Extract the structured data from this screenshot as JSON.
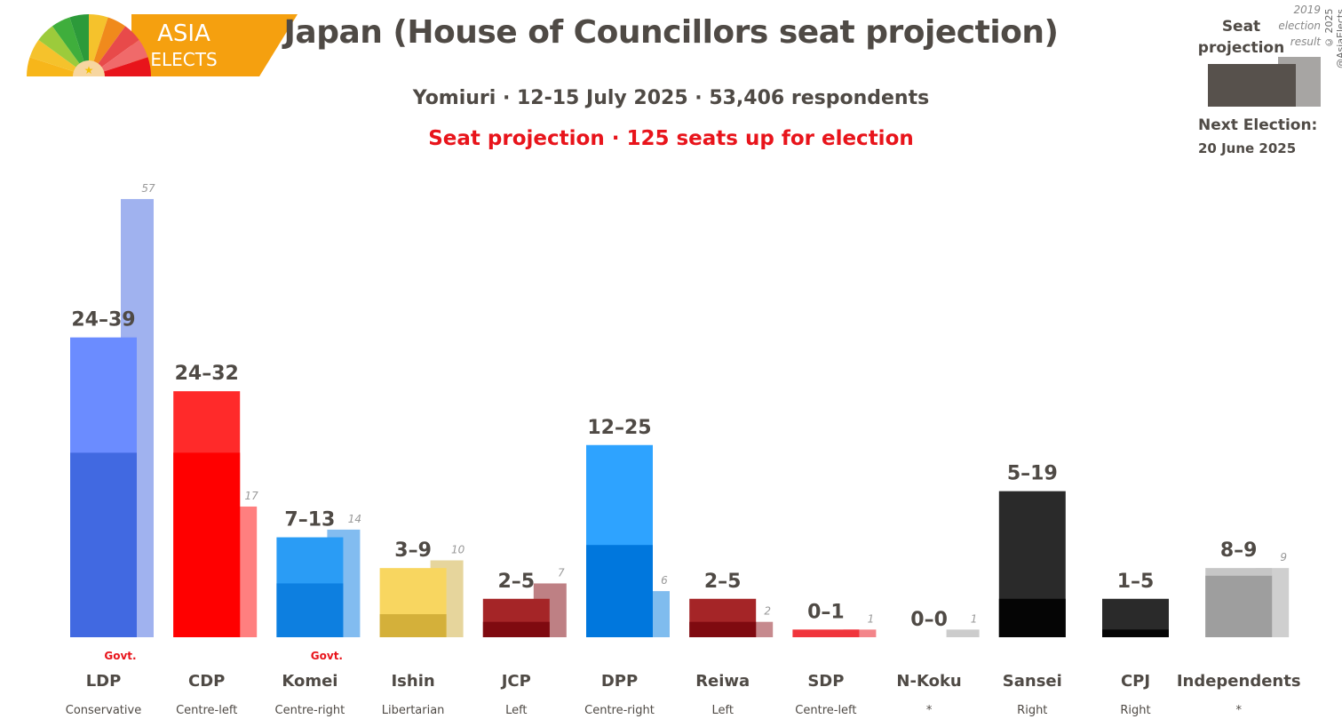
{
  "logo": {
    "line1": "ASIA",
    "line2": "ELECTS"
  },
  "header": {
    "title": "Japan (House of Councillors seat projection)",
    "subtitle": "Yomiuri · 12-15 July 2025 · 53,406 respondents",
    "projection_line": "Seat projection · 125 seats up for election"
  },
  "legend": {
    "projection_label_1": "Seat",
    "projection_label_2": "projection",
    "previous_label_1": "2019",
    "previous_label_2": "election",
    "previous_label_3": "result",
    "next_election_label": "Next Election:",
    "next_election_date": "20 June 2025",
    "copyright": "© 2025 @AsiaElects"
  },
  "colors": {
    "accent_red": "#e8141b",
    "text": "#4f4a45",
    "logo_orange": "#f5a00f"
  },
  "chart_data": {
    "type": "bar",
    "title": "Japan (House of Councillors seat projection)",
    "ylim": [
      0,
      60
    ],
    "grid": false,
    "legend_position": "top-right",
    "series": [
      {
        "name": "Seat projection (low)",
        "values": [
          24,
          24,
          7,
          3,
          2,
          12,
          2,
          0,
          0,
          5,
          1,
          8
        ]
      },
      {
        "name": "Seat projection (high)",
        "values": [
          39,
          32,
          13,
          9,
          5,
          25,
          5,
          1,
          0,
          19,
          5,
          9
        ]
      },
      {
        "name": "2019 election result",
        "values": [
          57,
          17,
          14,
          10,
          7,
          6,
          2,
          1,
          1,
          null,
          null,
          9
        ]
      }
    ],
    "parties": [
      {
        "name": "LDP",
        "ideology": "Conservative",
        "range_label": "24–39",
        "low": 24,
        "high": 39,
        "prev": 57,
        "prev_label": "57",
        "govt": "Govt.",
        "dark": "#4169e1",
        "light": "#6b8cff",
        "prev_color": "#a0b2ef"
      },
      {
        "name": "CDP",
        "ideology": "Centre-left",
        "range_label": "24–32",
        "low": 24,
        "high": 32,
        "prev": 17,
        "prev_label": "17",
        "govt": "",
        "dark": "#ff0000",
        "light": "#ff2a2a",
        "prev_color": "#ff7f7f"
      },
      {
        "name": "Komei",
        "ideology": "Centre-right",
        "range_label": "7–13",
        "low": 7,
        "high": 13,
        "prev": 14,
        "prev_label": "14",
        "govt": "Govt.",
        "dark": "#0d7fe0",
        "light": "#2a9cf5",
        "prev_color": "#82bcf0"
      },
      {
        "name": "Ishin",
        "ideology": "Libertarian",
        "range_label": "3–9",
        "low": 3,
        "high": 9,
        "prev": 10,
        "prev_label": "10",
        "govt": "",
        "dark": "#d4b03a",
        "light": "#f8d660",
        "prev_color": "#e6d59c"
      },
      {
        "name": "JCP",
        "ideology": "Left",
        "range_label": "2–5",
        "low": 2,
        "high": 5,
        "prev": 7,
        "prev_label": "7",
        "govt": "",
        "dark": "#7f0a10",
        "light": "#a52527",
        "prev_color": "#be8084"
      },
      {
        "name": "DPP",
        "ideology": "Centre-right",
        "range_label": "12–25",
        "low": 12,
        "high": 25,
        "prev": 6,
        "prev_label": "6",
        "govt": "",
        "dark": "#0077dd",
        "light": "#2ea3ff",
        "prev_color": "#7fbcee"
      },
      {
        "name": "Reiwa",
        "ideology": "Left",
        "range_label": "2–5",
        "low": 2,
        "high": 5,
        "prev": 2,
        "prev_label": "2",
        "govt": "",
        "dark": "#7f0a10",
        "light": "#a52527",
        "prev_color": "#c68a8e"
      },
      {
        "name": "SDP",
        "ideology": "Centre-left",
        "range_label": "0–1",
        "low": 0,
        "high": 1,
        "prev": 1,
        "prev_label": "1",
        "govt": "",
        "dark": "#e11b22",
        "light": "#f0353c",
        "prev_color": "#f3858a"
      },
      {
        "name": "N-Koku",
        "ideology": "*",
        "range_label": "0–0",
        "low": 0,
        "high": 0,
        "prev": 1,
        "prev_label": "1",
        "govt": "",
        "dark": "#cccccc",
        "light": "#cccccc",
        "prev_color": "#cccccc"
      },
      {
        "name": "Sansei",
        "ideology": "Right",
        "range_label": "5–19",
        "low": 5,
        "high": 19,
        "prev": null,
        "prev_label": "",
        "govt": "",
        "dark": "#050505",
        "light": "#2a2a2a",
        "prev_color": "#bbbbbb"
      },
      {
        "name": "CPJ",
        "ideology": "Right",
        "range_label": "1–5",
        "low": 1,
        "high": 5,
        "prev": null,
        "prev_label": "",
        "govt": "",
        "dark": "#050505",
        "light": "#2a2a2a",
        "prev_color": "#bbbbbb"
      },
      {
        "name": "Independents",
        "ideology": "*",
        "range_label": "8–9",
        "low": 8,
        "high": 9,
        "prev": 9,
        "prev_label": "9",
        "govt": "",
        "dark": "#9e9e9e",
        "light": "#c6c6c6",
        "prev_color": "#cfcfcf"
      }
    ]
  }
}
